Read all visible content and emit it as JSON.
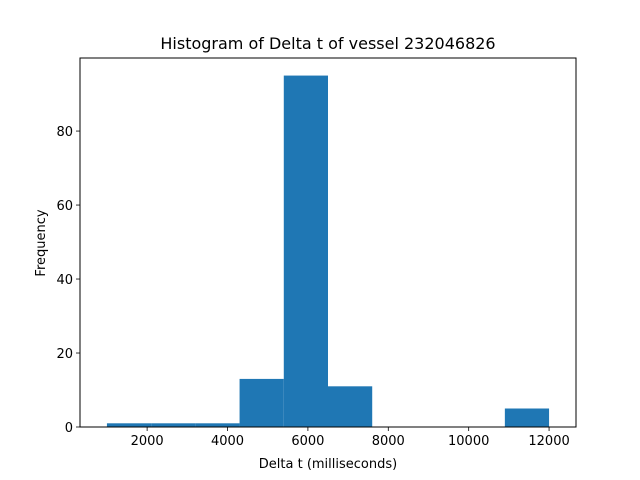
{
  "chart_data": {
    "type": "bar",
    "title": "Histogram of Delta t of vessel 232046826",
    "xlabel": "Delta t (milliseconds)",
    "ylabel": "Frequency",
    "xlim": [
      330,
      12670
    ],
    "ylim": [
      0,
      99.75
    ],
    "bar_color": "#1f77b4",
    "bins": [
      {
        "x0": 1000,
        "x1": 2100,
        "count": 1
      },
      {
        "x0": 2100,
        "x1": 3200,
        "count": 1
      },
      {
        "x0": 3200,
        "x1": 4300,
        "count": 1
      },
      {
        "x0": 4300,
        "x1": 5400,
        "count": 13
      },
      {
        "x0": 5400,
        "x1": 6500,
        "count": 95
      },
      {
        "x0": 6500,
        "x1": 7600,
        "count": 11
      },
      {
        "x0": 7600,
        "x1": 8700,
        "count": 0
      },
      {
        "x0": 8700,
        "x1": 9800,
        "count": 0
      },
      {
        "x0": 9800,
        "x1": 10900,
        "count": 0
      },
      {
        "x0": 10900,
        "x1": 12000,
        "count": 5
      }
    ],
    "xticks": [
      2000,
      4000,
      6000,
      8000,
      10000,
      12000
    ],
    "yticks": [
      0,
      20,
      40,
      60,
      80
    ],
    "grid": false,
    "legend": "none"
  }
}
